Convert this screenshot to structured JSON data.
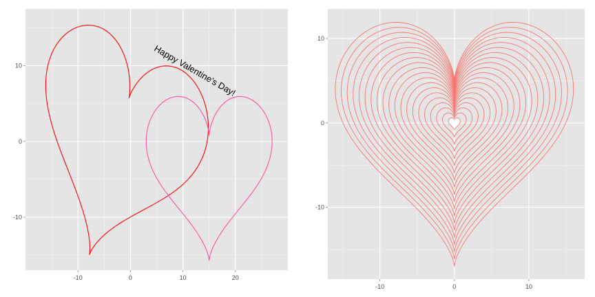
{
  "chart_data": [
    {
      "type": "line",
      "title": "",
      "xlabel": "",
      "ylabel": "",
      "xlim": [
        -20,
        30
      ],
      "ylim": [
        -17,
        17.5
      ],
      "x_ticks": [
        -10,
        0,
        10,
        20
      ],
      "y_ticks": [
        -10,
        0,
        10
      ],
      "x_tick_labels": [
        "-10",
        "0",
        "10",
        "20"
      ],
      "y_tick_labels": [
        "-10",
        "0",
        "10"
      ],
      "grid": true,
      "legend": "none",
      "panel_background": "#e5e5e5",
      "series": [
        {
          "color": "#ff0000",
          "transform": {
            "center": [
              -2.0,
              1.0
            ],
            "scale": 1.0,
            "rotation_deg": -20
          }
        },
        {
          "color": "#ff4fa6",
          "transform": {
            "center": [
              15.0,
              -3.0
            ],
            "scale": 0.75,
            "rotation_deg": 0
          }
        }
      ],
      "annotations": [
        {
          "text": "Happy Valentine's Day!",
          "x": 12,
          "y": 9,
          "angle_deg": -30,
          "color": "#000000"
        }
      ]
    },
    {
      "type": "line",
      "title": "",
      "xlabel": "",
      "ylabel": "",
      "xlim": [
        -17,
        17.5
      ],
      "ylim": [
        -18.5,
        13.5
      ],
      "x_ticks": [
        -10,
        0,
        10
      ],
      "y_ticks": [
        -10,
        0,
        10
      ],
      "x_tick_labels": [
        "-10",
        "0",
        "10"
      ],
      "y_tick_labels": [
        "-10",
        "0",
        "10"
      ],
      "grid": true,
      "legend": "none",
      "panel_background": "#e5e5e5",
      "series_color": "#f8766d",
      "scales": [
        1.0,
        0.95,
        0.9,
        0.85,
        0.8,
        0.75,
        0.7,
        0.65,
        0.6,
        0.55,
        0.5,
        0.45,
        0.4,
        0.35,
        0.3,
        0.25,
        0.2,
        0.15,
        0.1,
        0.05
      ],
      "innermost_heart_fill": "#ffffff"
    }
  ]
}
